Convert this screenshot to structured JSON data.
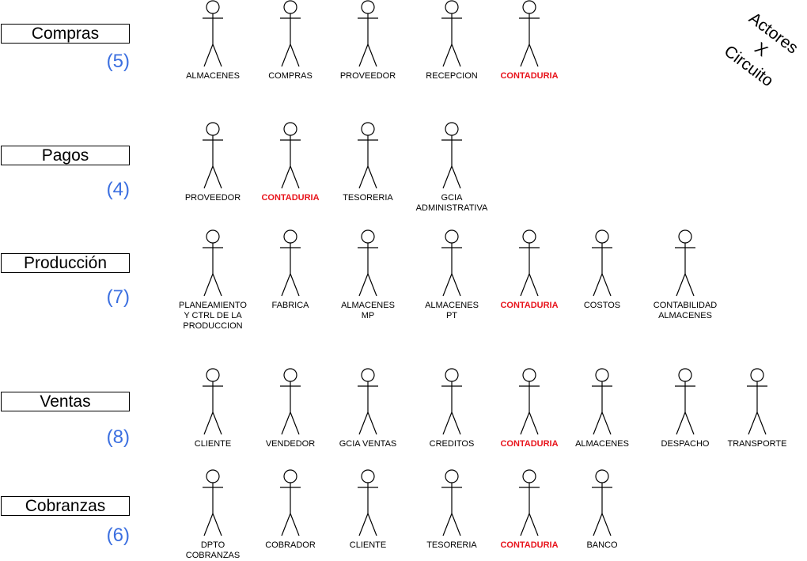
{
  "title": {
    "line1": "Actores",
    "line2": "X",
    "line3": "Circuito"
  },
  "circuits": [
    {
      "name": "Compras",
      "count": "(5)",
      "actors": [
        "ALMACENES",
        "COMPRAS",
        "PROVEEDOR",
        "RECEPCION",
        "CONTADURIA"
      ]
    },
    {
      "name": "Pagos",
      "count": "(4)",
      "actors": [
        "PROVEEDOR",
        "CONTADURIA",
        "TESORERIA",
        "GCIA\nADMINISTRATIVA"
      ]
    },
    {
      "name": "Producción",
      "count": "(7)",
      "actors": [
        "PLANEAMIENTO\nY CTRL DE LA\nPRODUCCION",
        "FABRICA",
        "ALMACENES\nMP",
        "ALMACENES\nPT",
        "CONTADURIA",
        "COSTOS",
        "CONTABILIDAD\nALMACENES"
      ]
    },
    {
      "name": "Ventas",
      "count": "(8)",
      "actors": [
        "CLIENTE",
        "VENDEDOR",
        "GCIA VENTAS",
        "CREDITOS",
        "CONTADURIA",
        "ALMACENES",
        "DESPACHO",
        "TRANSPORTE"
      ]
    },
    {
      "name": "Cobranzas",
      "count": "(6)",
      "actors": [
        "DPTO\nCOBRANZAS",
        "COBRADOR",
        "CLIENTE",
        "TESORERIA",
        "CONTADURIA",
        "BANCO"
      ]
    }
  ],
  "highlight_actor": "CONTADURIA",
  "colors": {
    "highlight": "#e8141c",
    "count": "#3b6fe0"
  }
}
